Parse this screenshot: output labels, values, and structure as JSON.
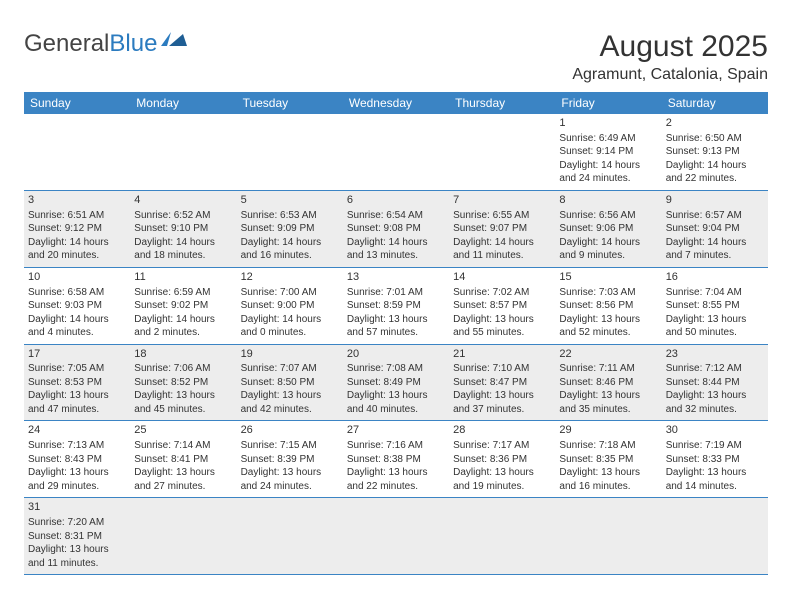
{
  "logo": {
    "text1": "General",
    "text2": "Blue"
  },
  "title": "August 2025",
  "subtitle": "Agramunt, Catalonia, Spain",
  "colors": {
    "header_bg": "#3b84c4",
    "header_text": "#ffffff",
    "row_alt_bg": "#ededed",
    "border": "#3b84c4",
    "logo_gray": "#444444",
    "logo_blue": "#2b7bbf"
  },
  "dayNames": [
    "Sunday",
    "Monday",
    "Tuesday",
    "Wednesday",
    "Thursday",
    "Friday",
    "Saturday"
  ],
  "weeks": [
    [
      null,
      null,
      null,
      null,
      null,
      {
        "d": "1",
        "sr": "6:49 AM",
        "ss": "9:14 PM",
        "dl": "14 hours and 24 minutes."
      },
      {
        "d": "2",
        "sr": "6:50 AM",
        "ss": "9:13 PM",
        "dl": "14 hours and 22 minutes."
      }
    ],
    [
      {
        "d": "3",
        "sr": "6:51 AM",
        "ss": "9:12 PM",
        "dl": "14 hours and 20 minutes."
      },
      {
        "d": "4",
        "sr": "6:52 AM",
        "ss": "9:10 PM",
        "dl": "14 hours and 18 minutes."
      },
      {
        "d": "5",
        "sr": "6:53 AM",
        "ss": "9:09 PM",
        "dl": "14 hours and 16 minutes."
      },
      {
        "d": "6",
        "sr": "6:54 AM",
        "ss": "9:08 PM",
        "dl": "14 hours and 13 minutes."
      },
      {
        "d": "7",
        "sr": "6:55 AM",
        "ss": "9:07 PM",
        "dl": "14 hours and 11 minutes."
      },
      {
        "d": "8",
        "sr": "6:56 AM",
        "ss": "9:06 PM",
        "dl": "14 hours and 9 minutes."
      },
      {
        "d": "9",
        "sr": "6:57 AM",
        "ss": "9:04 PM",
        "dl": "14 hours and 7 minutes."
      }
    ],
    [
      {
        "d": "10",
        "sr": "6:58 AM",
        "ss": "9:03 PM",
        "dl": "14 hours and 4 minutes."
      },
      {
        "d": "11",
        "sr": "6:59 AM",
        "ss": "9:02 PM",
        "dl": "14 hours and 2 minutes."
      },
      {
        "d": "12",
        "sr": "7:00 AM",
        "ss": "9:00 PM",
        "dl": "14 hours and 0 minutes."
      },
      {
        "d": "13",
        "sr": "7:01 AM",
        "ss": "8:59 PM",
        "dl": "13 hours and 57 minutes."
      },
      {
        "d": "14",
        "sr": "7:02 AM",
        "ss": "8:57 PM",
        "dl": "13 hours and 55 minutes."
      },
      {
        "d": "15",
        "sr": "7:03 AM",
        "ss": "8:56 PM",
        "dl": "13 hours and 52 minutes."
      },
      {
        "d": "16",
        "sr": "7:04 AM",
        "ss": "8:55 PM",
        "dl": "13 hours and 50 minutes."
      }
    ],
    [
      {
        "d": "17",
        "sr": "7:05 AM",
        "ss": "8:53 PM",
        "dl": "13 hours and 47 minutes."
      },
      {
        "d": "18",
        "sr": "7:06 AM",
        "ss": "8:52 PM",
        "dl": "13 hours and 45 minutes."
      },
      {
        "d": "19",
        "sr": "7:07 AM",
        "ss": "8:50 PM",
        "dl": "13 hours and 42 minutes."
      },
      {
        "d": "20",
        "sr": "7:08 AM",
        "ss": "8:49 PM",
        "dl": "13 hours and 40 minutes."
      },
      {
        "d": "21",
        "sr": "7:10 AM",
        "ss": "8:47 PM",
        "dl": "13 hours and 37 minutes."
      },
      {
        "d": "22",
        "sr": "7:11 AM",
        "ss": "8:46 PM",
        "dl": "13 hours and 35 minutes."
      },
      {
        "d": "23",
        "sr": "7:12 AM",
        "ss": "8:44 PM",
        "dl": "13 hours and 32 minutes."
      }
    ],
    [
      {
        "d": "24",
        "sr": "7:13 AM",
        "ss": "8:43 PM",
        "dl": "13 hours and 29 minutes."
      },
      {
        "d": "25",
        "sr": "7:14 AM",
        "ss": "8:41 PM",
        "dl": "13 hours and 27 minutes."
      },
      {
        "d": "26",
        "sr": "7:15 AM",
        "ss": "8:39 PM",
        "dl": "13 hours and 24 minutes."
      },
      {
        "d": "27",
        "sr": "7:16 AM",
        "ss": "8:38 PM",
        "dl": "13 hours and 22 minutes."
      },
      {
        "d": "28",
        "sr": "7:17 AM",
        "ss": "8:36 PM",
        "dl": "13 hours and 19 minutes."
      },
      {
        "d": "29",
        "sr": "7:18 AM",
        "ss": "8:35 PM",
        "dl": "13 hours and 16 minutes."
      },
      {
        "d": "30",
        "sr": "7:19 AM",
        "ss": "8:33 PM",
        "dl": "13 hours and 14 minutes."
      }
    ],
    [
      {
        "d": "31",
        "sr": "7:20 AM",
        "ss": "8:31 PM",
        "dl": "13 hours and 11 minutes."
      },
      null,
      null,
      null,
      null,
      null,
      null
    ]
  ],
  "labels": {
    "sunrise": "Sunrise:",
    "sunset": "Sunset:",
    "daylight": "Daylight:"
  }
}
